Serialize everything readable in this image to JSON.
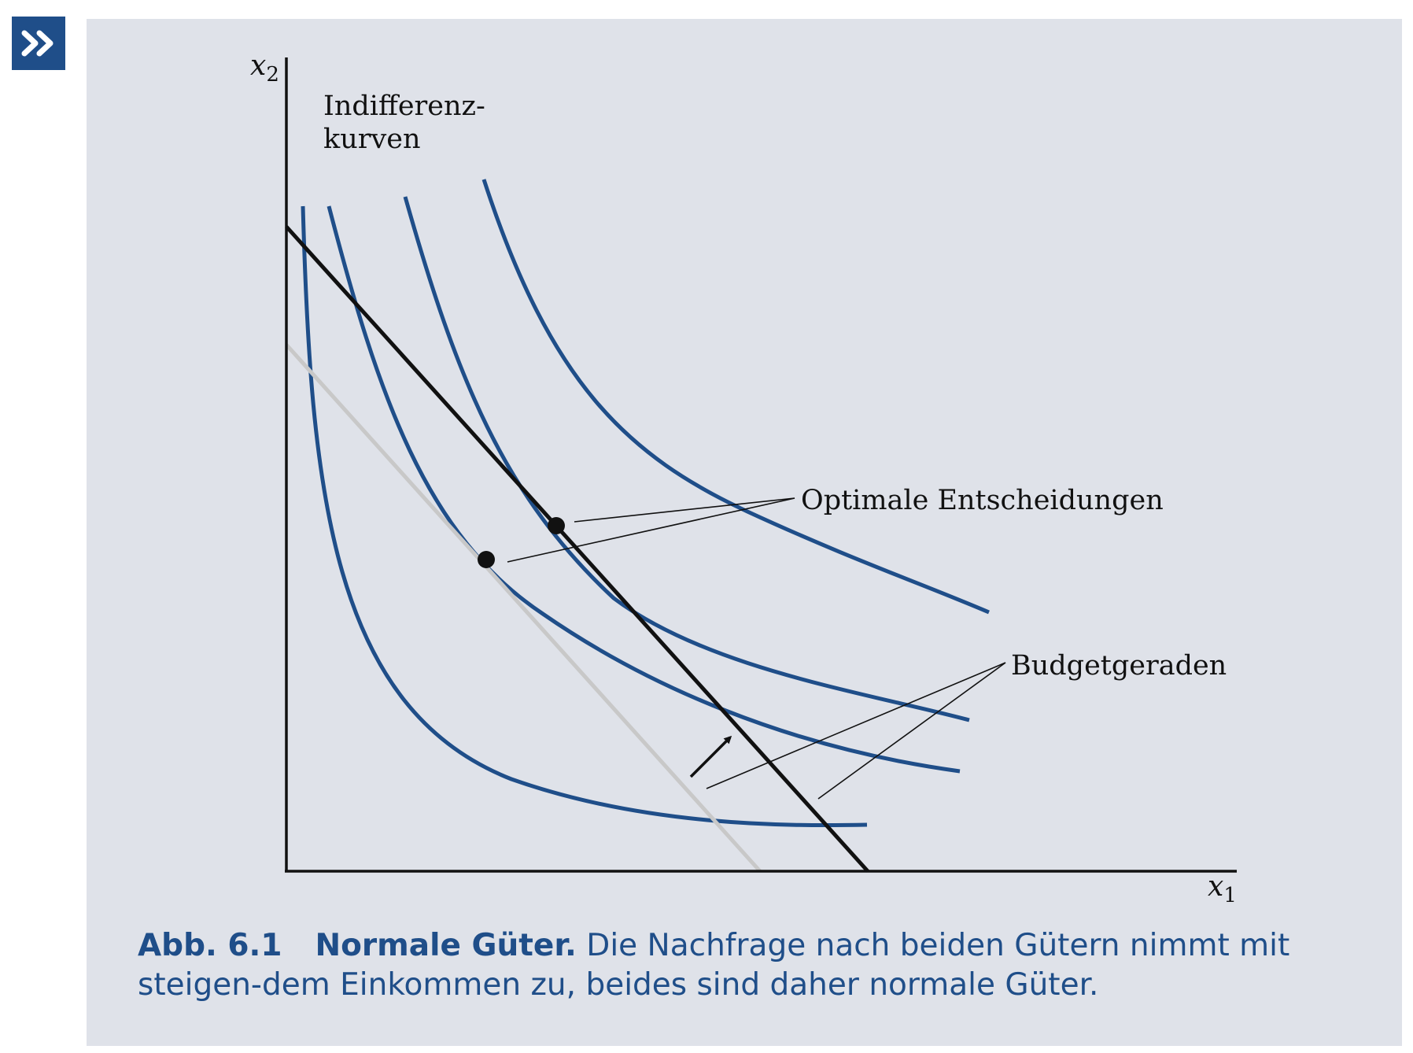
{
  "badge": {
    "icon": "double-chevron-right-icon",
    "glyph": "»",
    "color": "#1f4e89"
  },
  "figure": {
    "axis_y_label": {
      "base": "x",
      "sub": "2"
    },
    "axis_x_label": {
      "base": "x",
      "sub": "1"
    },
    "label_indifference_line1": "Indifferenz-",
    "label_indifference_line2": "kurven",
    "label_optimal": "Optimale Entscheidungen",
    "label_budget": "Budgetgeraden",
    "colors": {
      "indifference_curve": "#1f4e89",
      "budget_line_new": "#111111",
      "budget_line_old": "#c8c8c8",
      "background": "#dfe2e9"
    }
  },
  "caption": {
    "number": "Abb. 6.1",
    "heading": "Normale Güter.",
    "text": "Die Nachfrage nach beiden Gütern nimmt mit steigen-dem Einkommen zu, beides sind daher normale Güter."
  }
}
